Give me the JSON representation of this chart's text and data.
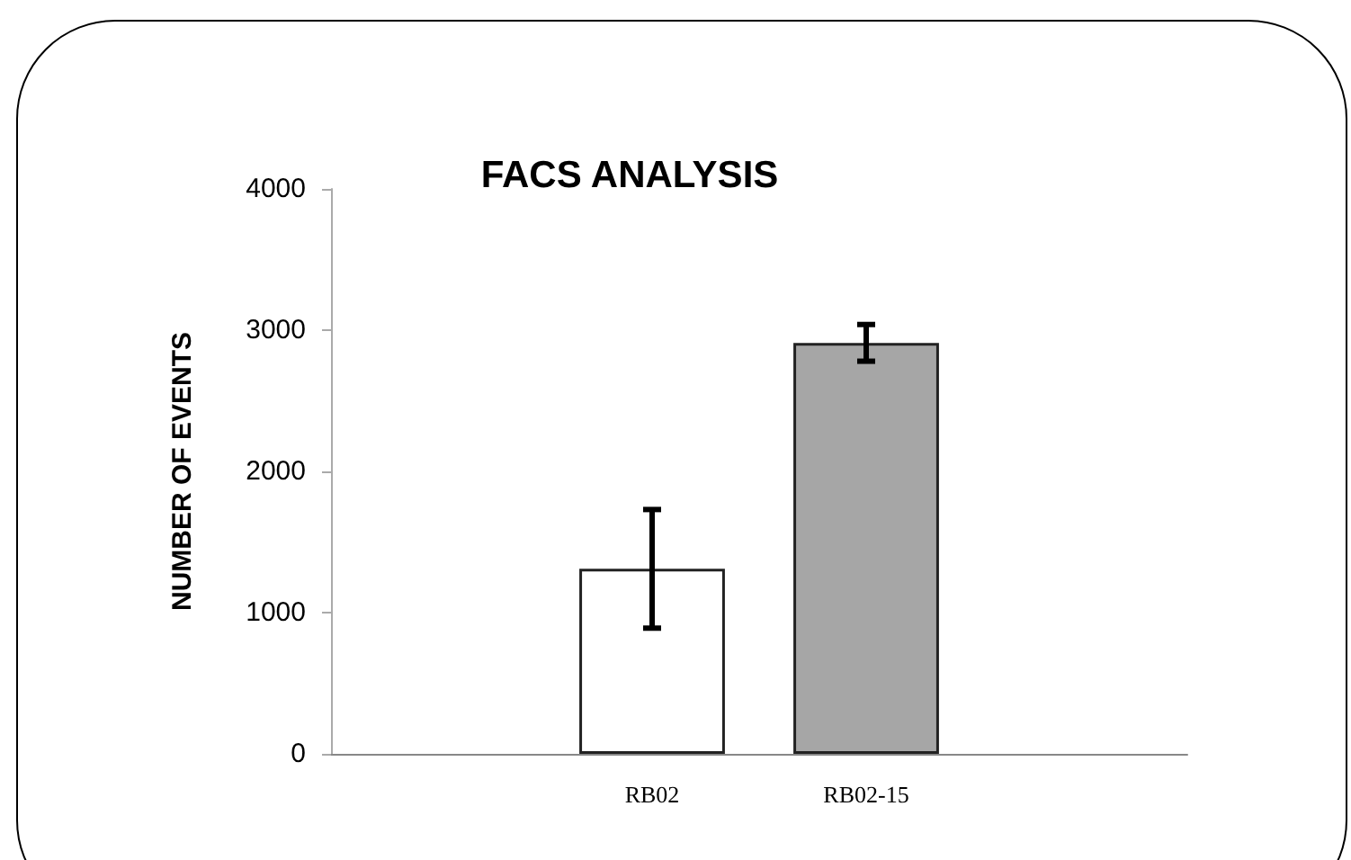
{
  "chart_data": {
    "type": "bar",
    "title": "FACS ANALYSIS",
    "ylabel": "NUMBER OF EVENTS",
    "categories": [
      null,
      "RB02",
      "RB02-15",
      null
    ],
    "values": [
      null,
      1310,
      2910,
      null
    ],
    "colors": [
      "#ffffff",
      "#ffffff",
      "#a6a6a6",
      "#ffffff"
    ],
    "errors": [
      null,
      [
        890,
        1730
      ],
      [
        2780,
        3040
      ],
      null
    ],
    "ylim": [
      0,
      4000
    ],
    "yticks": [
      0,
      1000,
      2000,
      3000,
      4000
    ],
    "grid": false
  }
}
